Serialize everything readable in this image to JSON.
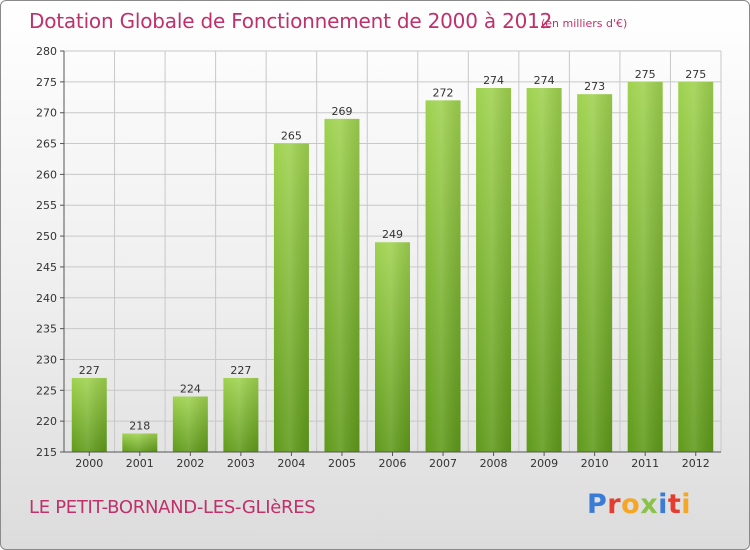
{
  "header": {
    "title": "Dotation Globale de Fonctionnement de 2000 à 2012",
    "unit_note": "(en milliers d'€)"
  },
  "footer": {
    "commune": "LE PETIT-BORNAND-LES-GLIèRES",
    "logo": [
      "P",
      "r",
      "o",
      "x",
      "i",
      "t",
      "i"
    ],
    "logo_colors": [
      "#3a7bd5",
      "#e63c2f",
      "#f5a623",
      "#8bc34a",
      "#3a7bd5",
      "#e63c2f",
      "#f5a623"
    ]
  },
  "colors": {
    "bar_light": "#9fd24f",
    "bar_dark": "#5f9a1a",
    "title": "#c0306a",
    "grid": "#c8c8c8"
  },
  "chart_data": {
    "type": "bar",
    "categories": [
      "2000",
      "2001",
      "2002",
      "2003",
      "2004",
      "2005",
      "2006",
      "2007",
      "2008",
      "2009",
      "2010",
      "2011",
      "2012"
    ],
    "values": [
      227,
      218,
      224,
      227,
      265,
      269,
      249,
      272,
      274,
      274,
      273,
      275,
      275
    ],
    "ylim": [
      215,
      280
    ],
    "yticks": [
      215,
      220,
      225,
      230,
      235,
      240,
      245,
      250,
      255,
      260,
      265,
      270,
      275,
      280
    ],
    "grid": true,
    "data_labels": true
  }
}
